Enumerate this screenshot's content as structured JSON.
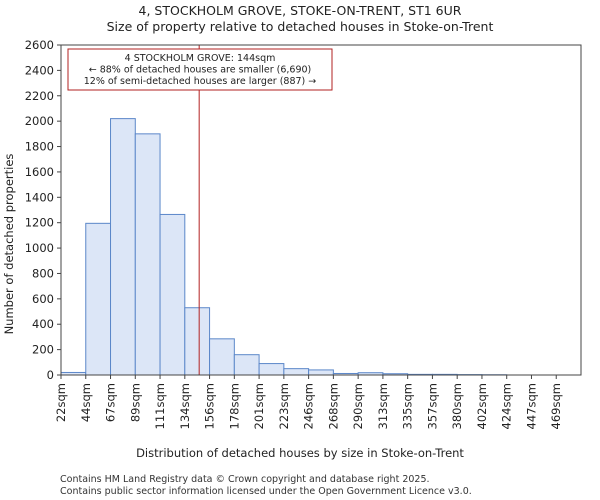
{
  "chart_data": {
    "type": "bar",
    "title": "4, STOCKHOLM GROVE, STOKE-ON-TRENT, ST1 6UR",
    "subtitle": "Size of property relative to detached houses in Stoke-on-Trent",
    "xlabel": "Distribution of detached houses by size in Stoke-on-Trent",
    "ylabel": "Number of detached properties",
    "categories": [
      "22sqm",
      "44sqm",
      "67sqm",
      "89sqm",
      "111sqm",
      "134sqm",
      "156sqm",
      "178sqm",
      "201sqm",
      "223sqm",
      "246sqm",
      "268sqm",
      "290sqm",
      "313sqm",
      "335sqm",
      "357sqm",
      "380sqm",
      "402sqm",
      "424sqm",
      "447sqm",
      "469sqm"
    ],
    "values": [
      20,
      1195,
      2020,
      1900,
      1265,
      530,
      285,
      160,
      90,
      50,
      40,
      12,
      18,
      10,
      5,
      5,
      3,
      2,
      0,
      0,
      0
    ],
    "ylim": [
      0,
      2600
    ],
    "yticks": [
      0,
      200,
      400,
      600,
      800,
      1000,
      1200,
      1400,
      1600,
      1800,
      2000,
      2200,
      2400,
      2600
    ],
    "grid": false,
    "bar_color": "#dce6f7",
    "bar_edge_color": "#5b87c9",
    "marker": {
      "value_sqm": 144,
      "bin_index": 5.58,
      "color": "#b22222",
      "annotation_lines": [
        "4 STOCKHOLM GROVE: 144sqm",
        "← 88% of detached houses are smaller (6,690)",
        "12% of semi-detached houses are larger (887) →"
      ]
    }
  },
  "footer": {
    "line1": "Contains HM Land Registry data © Crown copyright and database right 2025.",
    "line2": "Contains public sector information licensed under the Open Government Licence v3.0."
  }
}
